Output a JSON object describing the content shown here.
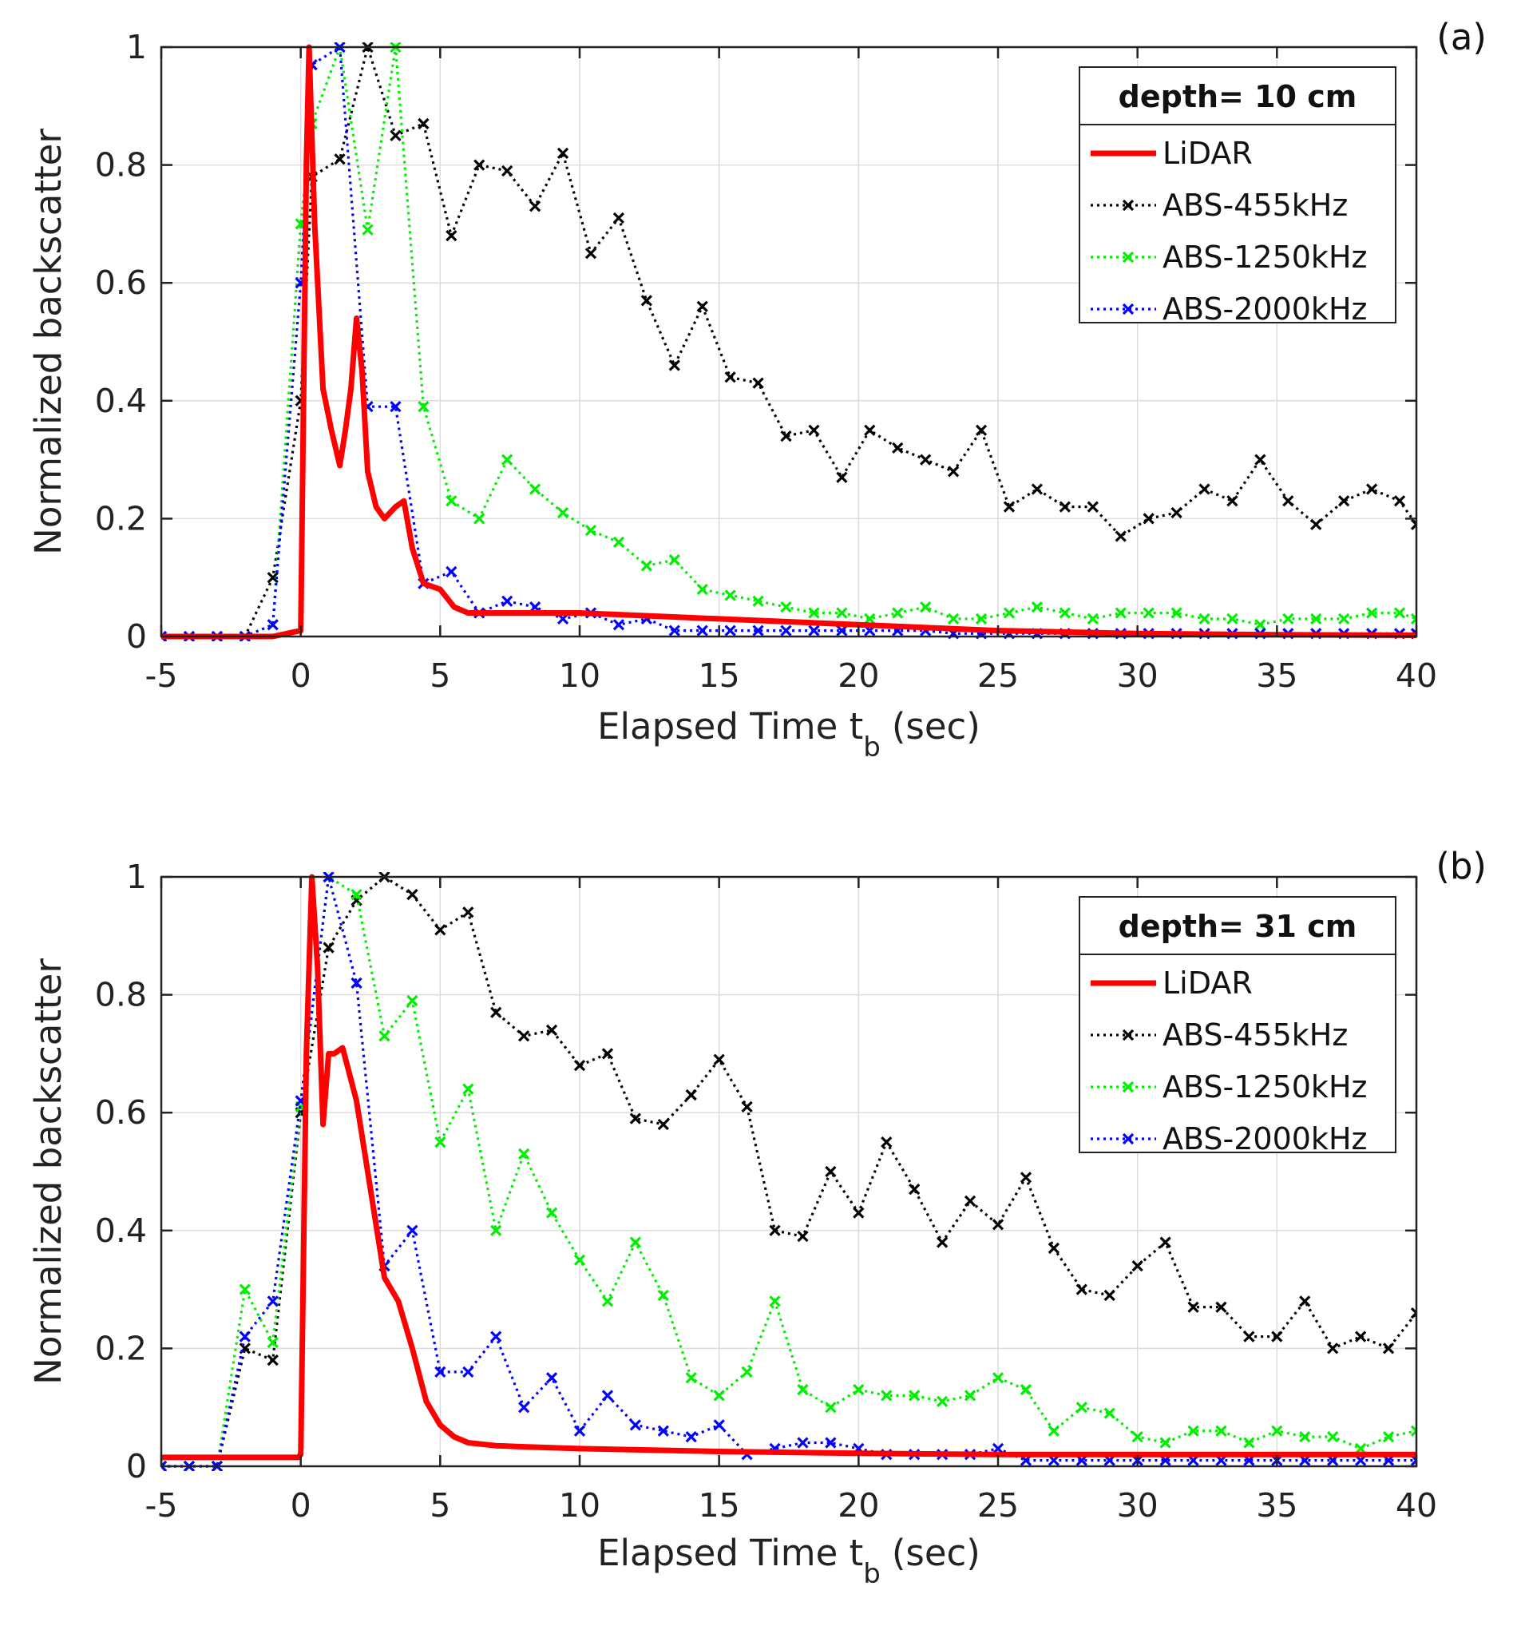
{
  "chart_data": [
    {
      "type": "line",
      "panel_label": "(a)",
      "legend_title": "depth= 10 cm",
      "legend_position": "top-right",
      "xlabel_main": "Elapsed Time t",
      "xlabel_sub": "b",
      "xlabel_unit": "(sec)",
      "ylabel": "Normalized backscatter",
      "xlim": [
        -5,
        40
      ],
      "ylim": [
        0,
        1
      ],
      "xticks": [
        -5,
        0,
        5,
        10,
        15,
        20,
        25,
        30,
        35,
        40
      ],
      "yticks": [
        0,
        0.2,
        0.4,
        0.6,
        0.8,
        1
      ],
      "grid": true,
      "series": [
        {
          "name": "LiDAR",
          "color": "#ff0000",
          "style": "solid",
          "marker": "none",
          "x": [
            -5,
            -1,
            0,
            0.1,
            0.2,
            0.3,
            0.5,
            0.8,
            1.1,
            1.4,
            1.6,
            1.8,
            2.0,
            2.2,
            2.4,
            2.7,
            3.0,
            3.4,
            3.7,
            4.0,
            4.4,
            5.0,
            5.5,
            6,
            7,
            8,
            10,
            15,
            20,
            25,
            30,
            35,
            40
          ],
          "y": [
            0,
            0,
            0.01,
            0.4,
            0.8,
            1.0,
            0.7,
            0.42,
            0.35,
            0.29,
            0.35,
            0.42,
            0.54,
            0.45,
            0.28,
            0.22,
            0.2,
            0.22,
            0.23,
            0.15,
            0.09,
            0.08,
            0.05,
            0.04,
            0.04,
            0.04,
            0.04,
            0.03,
            0.02,
            0.01,
            0.005,
            0.003,
            0.002
          ]
        },
        {
          "name": "ABS-455kHz",
          "color": "#000000",
          "style": "dotted",
          "marker": "x",
          "x": [
            -5,
            -4,
            -3,
            -2,
            -1,
            0,
            0.4,
            1.4,
            2.4,
            3.4,
            4.4,
            5.4,
            6.4,
            7.4,
            8.4,
            9.4,
            10.4,
            11.4,
            12.4,
            13.4,
            14.4,
            15.4,
            16.4,
            17.4,
            18.4,
            19.4,
            20.4,
            21.4,
            22.4,
            23.4,
            24.4,
            25.4,
            26.4,
            27.4,
            28.4,
            29.4,
            30.4,
            31.4,
            32.4,
            33.4,
            34.4,
            35.4,
            36.4,
            37.4,
            38.4,
            39.4,
            40
          ],
          "y": [
            0,
            0,
            0,
            0,
            0.1,
            0.4,
            0.78,
            0.81,
            1.0,
            0.85,
            0.87,
            0.68,
            0.8,
            0.79,
            0.73,
            0.82,
            0.65,
            0.71,
            0.57,
            0.46,
            0.56,
            0.44,
            0.43,
            0.34,
            0.35,
            0.27,
            0.35,
            0.32,
            0.3,
            0.28,
            0.35,
            0.22,
            0.25,
            0.22,
            0.22,
            0.17,
            0.2,
            0.21,
            0.25,
            0.23,
            0.3,
            0.23,
            0.19,
            0.23,
            0.25,
            0.23,
            0.19
          ]
        },
        {
          "name": "ABS-1250kHz",
          "color": "#00ee00",
          "style": "dotted",
          "marker": "x",
          "x": [
            -5,
            -4,
            -3,
            -2,
            -1,
            0,
            0.4,
            1.4,
            2.4,
            3.4,
            4.4,
            5.4,
            6.4,
            7.4,
            8.4,
            9.4,
            10.4,
            11.4,
            12.4,
            13.4,
            14.4,
            15.4,
            16.4,
            17.4,
            18.4,
            19.4,
            20.4,
            21.4,
            22.4,
            23.4,
            24.4,
            25.4,
            26.4,
            27.4,
            28.4,
            29.4,
            30.4,
            31.4,
            32.4,
            33.4,
            34.4,
            35.4,
            36.4,
            37.4,
            38.4,
            39.4,
            40
          ],
          "y": [
            0,
            0,
            0,
            0,
            0.02,
            0.7,
            0.87,
            1.0,
            0.69,
            1.0,
            0.39,
            0.23,
            0.2,
            0.3,
            0.25,
            0.21,
            0.18,
            0.16,
            0.12,
            0.13,
            0.08,
            0.07,
            0.06,
            0.05,
            0.04,
            0.04,
            0.03,
            0.04,
            0.05,
            0.03,
            0.03,
            0.04,
            0.05,
            0.04,
            0.03,
            0.04,
            0.04,
            0.04,
            0.03,
            0.03,
            0.02,
            0.03,
            0.03,
            0.03,
            0.04,
            0.04,
            0.03
          ]
        },
        {
          "name": "ABS-2000kHz",
          "color": "#0000ff",
          "style": "dotted",
          "marker": "x",
          "x": [
            -5,
            -4,
            -3,
            -2,
            -1,
            0,
            0.4,
            1.4,
            2.4,
            3.4,
            4.4,
            5.4,
            6.4,
            7.4,
            8.4,
            9.4,
            10.4,
            11.4,
            12.4,
            13.4,
            14.4,
            15.4,
            16.4,
            17.4,
            18.4,
            19.4,
            20.4,
            21.4,
            22.4,
            23.4,
            24.4,
            25.4,
            26.4,
            27.4,
            28.4,
            29.4,
            30.4,
            31.4,
            32.4,
            33.4,
            34.4,
            35.4,
            36.4,
            37.4,
            38.4,
            39.4,
            40
          ],
          "y": [
            0,
            0,
            0,
            0,
            0.02,
            0.6,
            0.97,
            1.0,
            0.39,
            0.39,
            0.09,
            0.11,
            0.04,
            0.06,
            0.05,
            0.03,
            0.04,
            0.02,
            0.03,
            0.01,
            0.01,
            0.01,
            0.01,
            0.01,
            0.01,
            0.01,
            0.01,
            0.01,
            0.01,
            0.005,
            0.005,
            0.005,
            0.005,
            0.005,
            0.005,
            0.005,
            0.005,
            0.005,
            0.005,
            0.005,
            0.005,
            0.005,
            0.005,
            0.005,
            0.005,
            0.005,
            0.005
          ]
        }
      ]
    },
    {
      "type": "line",
      "panel_label": "(b)",
      "legend_title": "depth= 31 cm",
      "legend_position": "top-right",
      "xlabel_main": "Elapsed Time t",
      "xlabel_sub": "b",
      "xlabel_unit": "(sec)",
      "ylabel": "Normalized backscatter",
      "xlim": [
        -5,
        40
      ],
      "ylim": [
        0,
        1
      ],
      "xticks": [
        -5,
        0,
        5,
        10,
        15,
        20,
        25,
        30,
        35,
        40
      ],
      "yticks": [
        0,
        0.2,
        0.4,
        0.6,
        0.8,
        1
      ],
      "grid": true,
      "series": [
        {
          "name": "LiDAR",
          "color": "#ff0000",
          "style": "solid",
          "marker": "none",
          "x": [
            -5,
            -1,
            -0.1,
            0,
            0.2,
            0.4,
            0.6,
            0.8,
            1.0,
            1.2,
            1.5,
            2.0,
            2.5,
            3.0,
            3.5,
            4.0,
            4.5,
            5.0,
            5.5,
            6,
            7,
            8,
            10,
            15,
            20,
            25,
            30,
            35,
            40
          ],
          "y": [
            0.015,
            0.015,
            0.015,
            0.02,
            0.7,
            1.0,
            0.85,
            0.58,
            0.7,
            0.7,
            0.71,
            0.62,
            0.47,
            0.32,
            0.28,
            0.2,
            0.11,
            0.07,
            0.05,
            0.04,
            0.035,
            0.033,
            0.03,
            0.025,
            0.022,
            0.02,
            0.02,
            0.02,
            0.02
          ]
        },
        {
          "name": "ABS-455kHz",
          "color": "#000000",
          "style": "dotted",
          "marker": "x",
          "x": [
            -5,
            -4,
            -3,
            -2,
            -1,
            0,
            1,
            2,
            3,
            4,
            5,
            6,
            7,
            8,
            9,
            10,
            11,
            12,
            13,
            14,
            15,
            16,
            17,
            18,
            19,
            20,
            21,
            22,
            23,
            24,
            25,
            26,
            27,
            28,
            29,
            30,
            31,
            32,
            33,
            34,
            35,
            36,
            37,
            38,
            39,
            40
          ],
          "y": [
            0,
            0,
            0,
            0.2,
            0.18,
            0.6,
            0.88,
            0.96,
            1.0,
            0.97,
            0.91,
            0.94,
            0.77,
            0.73,
            0.74,
            0.68,
            0.7,
            0.59,
            0.58,
            0.63,
            0.69,
            0.61,
            0.4,
            0.39,
            0.5,
            0.43,
            0.55,
            0.47,
            0.38,
            0.45,
            0.41,
            0.49,
            0.37,
            0.3,
            0.29,
            0.34,
            0.38,
            0.27,
            0.27,
            0.22,
            0.22,
            0.28,
            0.2,
            0.22,
            0.2,
            0.26
          ]
        },
        {
          "name": "ABS-1250kHz",
          "color": "#00ee00",
          "style": "dotted",
          "marker": "x",
          "x": [
            -5,
            -4,
            -3,
            -2,
            -1,
            0,
            1,
            2,
            3,
            4,
            5,
            6,
            7,
            8,
            9,
            10,
            11,
            12,
            13,
            14,
            15,
            16,
            17,
            18,
            19,
            20,
            21,
            22,
            23,
            24,
            25,
            26,
            27,
            28,
            29,
            30,
            31,
            32,
            33,
            34,
            35,
            36,
            37,
            38,
            39,
            40
          ],
          "y": [
            0,
            0,
            0,
            0.3,
            0.21,
            0.61,
            1.0,
            0.97,
            0.73,
            0.79,
            0.55,
            0.64,
            0.4,
            0.53,
            0.43,
            0.35,
            0.28,
            0.38,
            0.29,
            0.15,
            0.12,
            0.16,
            0.28,
            0.13,
            0.1,
            0.13,
            0.12,
            0.12,
            0.11,
            0.12,
            0.15,
            0.13,
            0.06,
            0.1,
            0.09,
            0.05,
            0.04,
            0.06,
            0.06,
            0.04,
            0.06,
            0.05,
            0.05,
            0.03,
            0.05,
            0.06
          ]
        },
        {
          "name": "ABS-2000kHz",
          "color": "#0000ff",
          "style": "dotted",
          "marker": "x",
          "x": [
            -5,
            -4,
            -3,
            -2,
            -1,
            0,
            1,
            2,
            3,
            4,
            5,
            6,
            7,
            8,
            9,
            10,
            11,
            12,
            13,
            14,
            15,
            16,
            17,
            18,
            19,
            20,
            21,
            22,
            23,
            24,
            25,
            26,
            27,
            28,
            29,
            30,
            31,
            32,
            33,
            34,
            35,
            36,
            37,
            38,
            39,
            40
          ],
          "y": [
            0,
            0,
            0,
            0.22,
            0.28,
            0.62,
            1.0,
            0.82,
            0.34,
            0.4,
            0.16,
            0.16,
            0.22,
            0.1,
            0.15,
            0.06,
            0.12,
            0.07,
            0.06,
            0.05,
            0.07,
            0.02,
            0.03,
            0.04,
            0.04,
            0.03,
            0.02,
            0.02,
            0.02,
            0.02,
            0.03,
            0.01,
            0.01,
            0.01,
            0.01,
            0.01,
            0.01,
            0.01,
            0.01,
            0.01,
            0.01,
            0.01,
            0.01,
            0.01,
            0.01,
            0.01
          ]
        }
      ]
    }
  ]
}
